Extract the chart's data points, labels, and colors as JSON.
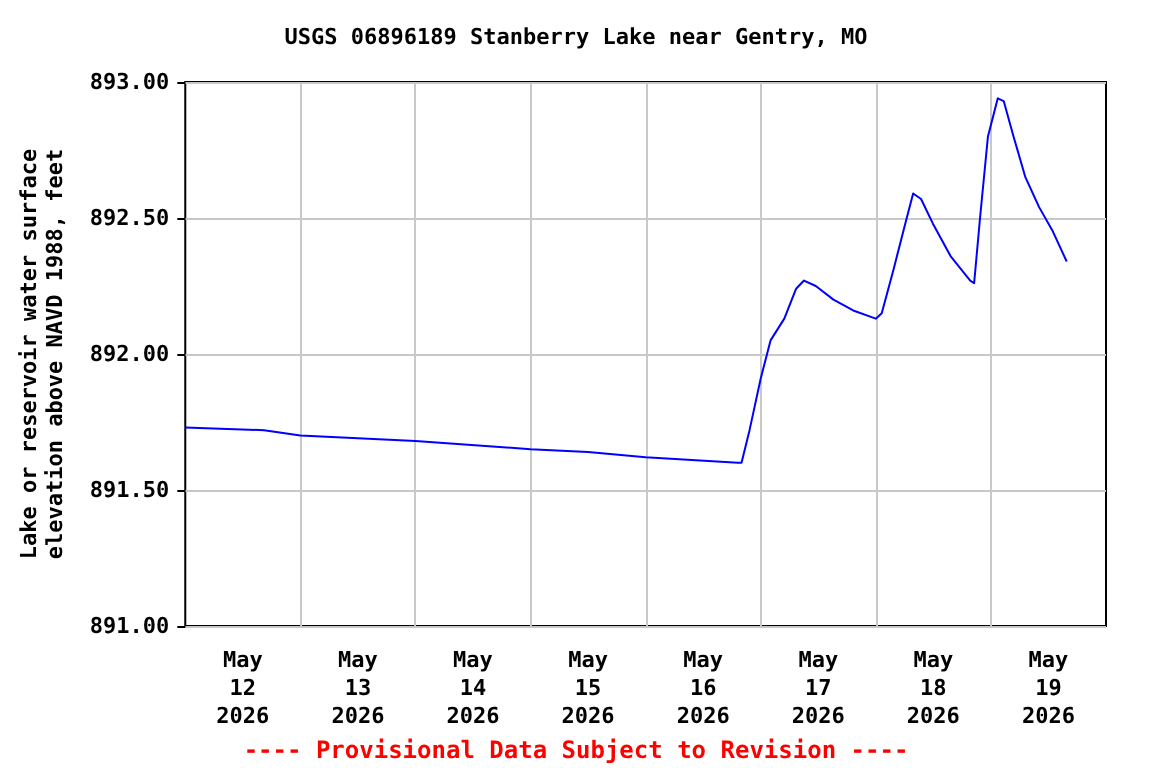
{
  "chart_data": {
    "type": "line",
    "title": "USGS 06896189 Stanberry Lake near Gentry, MO",
    "ylabel": "Lake or reservoir water surface\nelevation above NAVD 1988, feet",
    "annotations": [
      "---- Provisional Data Subject to Revision ----"
    ],
    "x": [
      "2026-05-12T00:00",
      "2026-05-12T16:25",
      "2026-05-13T00:00",
      "2026-05-14T00:00",
      "2026-05-15T00:00",
      "2026-05-15T12:00",
      "2026-05-16T00:00",
      "2026-05-16T19:15",
      "2026-05-16T20:00",
      "2026-05-16T21:40",
      "2026-05-17T00:00",
      "2026-05-17T02:03",
      "2026-05-17T04:55",
      "2026-05-17T07:23",
      "2026-05-17T09:01",
      "2026-05-17T11:29",
      "2026-05-17T15:10",
      "2026-05-17T19:17",
      "2026-05-18T00:00",
      "2026-05-18T01:14",
      "2026-05-18T03:41",
      "2026-05-18T06:09",
      "2026-05-18T07:47",
      "2026-05-18T09:26",
      "2026-05-18T11:53",
      "2026-05-18T15:35",
      "2026-05-18T19:41",
      "2026-05-18T20:30",
      "2026-05-18T21:44",
      "2026-05-18T23:23",
      "2026-05-19T01:26",
      "2026-05-19T02:40",
      "2026-05-19T04:43",
      "2026-05-19T07:11",
      "2026-05-19T10:03",
      "2026-05-19T12:56",
      "2026-05-19T15:48"
    ],
    "series": [
      {
        "color": "#0000ff",
        "values": [
          891.73,
          891.72,
          891.7,
          891.68,
          891.65,
          891.64,
          891.62,
          891.6,
          891.6,
          891.72,
          891.91,
          892.05,
          892.13,
          892.24,
          892.27,
          892.25,
          892.2,
          892.16,
          892.13,
          892.15,
          892.31,
          892.48,
          892.59,
          892.57,
          892.48,
          892.36,
          892.27,
          892.26,
          892.5,
          892.8,
          892.94,
          892.93,
          892.8,
          892.65,
          892.54,
          892.45,
          892.34
        ]
      }
    ],
    "xlim": [
      "2026-05-12T00:00",
      "2026-05-20T00:00"
    ],
    "xticks": [
      {
        "value": "2026-05-12T12:00",
        "label": "May\n12\n2026"
      },
      {
        "value": "2026-05-13T00:00",
        "label": null
      },
      {
        "value": "2026-05-13T12:00",
        "label": "May\n13\n2026"
      },
      {
        "value": "2026-05-14T00:00",
        "label": null
      },
      {
        "value": "2026-05-14T12:00",
        "label": "May\n14\n2026"
      },
      {
        "value": "2026-05-15T00:00",
        "label": null
      },
      {
        "value": "2026-05-15T12:00",
        "label": "May\n15\n2026"
      },
      {
        "value": "2026-05-16T00:00",
        "label": null
      },
      {
        "value": "2026-05-16T12:00",
        "label": "May\n16\n2026"
      },
      {
        "value": "2026-05-17T00:00",
        "label": null
      },
      {
        "value": "2026-05-17T12:00",
        "label": "May\n17\n2026"
      },
      {
        "value": "2026-05-18T00:00",
        "label": null
      },
      {
        "value": "2026-05-18T12:00",
        "label": "May\n18\n2026"
      },
      {
        "value": "2026-05-19T00:00",
        "label": null
      },
      {
        "value": "2026-05-19T12:00",
        "label": "May\n19\n2026"
      }
    ],
    "ylim": [
      891,
      893
    ],
    "yticks": [
      {
        "value": 891,
        "label": "891.00"
      },
      {
        "value": 891.5,
        "label": "891.50"
      },
      {
        "value": 892,
        "label": "892.00"
      },
      {
        "value": 892.5,
        "label": "892.50"
      },
      {
        "value": 893,
        "label": "893.00"
      }
    ],
    "grid": true,
    "marker": "none",
    "line_style": "solid"
  }
}
